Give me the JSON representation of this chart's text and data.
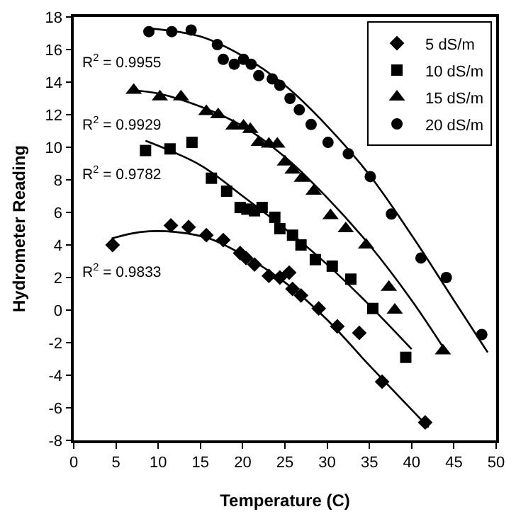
{
  "chart_data": {
    "type": "scatter",
    "xlabel": "Temperature (C)",
    "ylabel": "Hydrometer Reading",
    "xlim": [
      0,
      50
    ],
    "xticks": [
      0,
      5,
      10,
      15,
      20,
      25,
      30,
      35,
      40,
      45,
      50
    ],
    "ylim": [
      -8,
      18
    ],
    "yticks": [
      -8,
      -6,
      -4,
      -2,
      0,
      2,
      4,
      6,
      8,
      10,
      12,
      14,
      16,
      18
    ],
    "grid": false,
    "legend": "top right",
    "annotations": [
      "R$^{2}$ = 0.9833",
      "R$^{2}$ = 0.9782",
      "R$^{2}$ = 0.9929",
      "R$^{2}$ = 0.9955"
    ],
    "series": [
      {
        "name": "5 dS/m",
        "color": "#000000",
        "marker": "diamond",
        "x": [
          4.6,
          11.5,
          13.6,
          15.7,
          17.7,
          19.7,
          20.4,
          21.4,
          23.1,
          24.4,
          25.5,
          25.9,
          26.9,
          29.0,
          31.2,
          33.8,
          36.5,
          41.6
        ],
        "values": [
          4.0,
          5.2,
          5.1,
          4.6,
          4.3,
          3.5,
          3.2,
          2.8,
          2.1,
          2.0,
          2.3,
          1.3,
          0.9,
          0.1,
          -1.0,
          -1.4,
          -4.4,
          -6.9
        ]
      },
      {
        "name": "10 dS/m",
        "color": "#000000",
        "marker": "square",
        "x": [
          8.5,
          11.4,
          14.0,
          16.3,
          18.1,
          19.7,
          20.5,
          21.4,
          22.3,
          23.8,
          24.4,
          25.9,
          26.9,
          28.6,
          30.6,
          32.8,
          35.4,
          39.3
        ],
        "values": [
          9.8,
          9.9,
          10.3,
          8.1,
          7.3,
          6.3,
          6.2,
          6.1,
          6.3,
          5.7,
          5.0,
          4.6,
          4.0,
          3.1,
          2.7,
          1.9,
          0.1,
          -2.9
        ]
      },
      {
        "name": "15 dS/m",
        "color": "#000000",
        "marker": "triangle",
        "x": [
          7.1,
          10.2,
          12.7,
          15.7,
          17.1,
          18.9,
          20.1,
          20.9,
          21.9,
          23.1,
          24.1,
          25.0,
          25.9,
          27.0,
          28.4,
          30.4,
          32.2,
          34.6,
          37.3,
          38.0,
          43.7
        ],
        "values": [
          13.5,
          13.1,
          13.1,
          12.2,
          12.0,
          11.3,
          11.3,
          11.1,
          10.3,
          10.2,
          10.2,
          9.1,
          8.6,
          8.1,
          7.3,
          5.8,
          5.0,
          4.0,
          1.4,
          0.0,
          -2.5
        ]
      },
      {
        "name": "20 dS/m",
        "color": "#000000",
        "marker": "circle",
        "x": [
          8.9,
          11.6,
          13.9,
          17.0,
          17.7,
          19.0,
          20.1,
          21.0,
          21.9,
          23.5,
          24.4,
          25.6,
          26.7,
          28.1,
          30.1,
          32.5,
          35.1,
          37.6,
          41.1,
          44.1,
          48.3
        ],
        "values": [
          17.1,
          17.1,
          17.2,
          16.3,
          15.4,
          15.1,
          15.4,
          15.1,
          14.4,
          14.2,
          13.8,
          13.0,
          12.3,
          11.4,
          10.3,
          9.6,
          8.2,
          5.9,
          3.2,
          2.0,
          -1.5
        ]
      },
      {
        "type": "line",
        "color": "#000000",
        "marker": "none",
        "x": [
          4.5,
          8,
          12,
          16,
          20,
          25,
          30,
          35,
          42
        ],
        "values": [
          4.4,
          4.8,
          4.8,
          4.4,
          3.4,
          1.7,
          -0.6,
          -3.4,
          -7.2
        ]
      },
      {
        "type": "line",
        "color": "#000000",
        "marker": "none",
        "x": [
          8.5,
          15,
          20,
          25,
          30,
          35,
          40
        ],
        "values": [
          10.4,
          8.9,
          7.0,
          5.0,
          2.8,
          0.3,
          -2.4
        ]
      },
      {
        "type": "line",
        "color": "#000000",
        "marker": "none",
        "x": [
          7,
          10,
          15,
          20,
          25,
          30,
          35,
          40,
          44
        ],
        "values": [
          13.5,
          13.3,
          12.5,
          11.3,
          9.4,
          6.9,
          4.0,
          0.6,
          -2.5
        ]
      },
      {
        "type": "line",
        "color": "#000000",
        "marker": "none",
        "x": [
          9,
          15,
          20,
          25,
          30,
          35,
          40,
          45,
          49
        ],
        "values": [
          17.3,
          16.8,
          15.6,
          13.8,
          11.3,
          8.3,
          4.6,
          0.6,
          -2.6
        ]
      }
    ]
  }
}
